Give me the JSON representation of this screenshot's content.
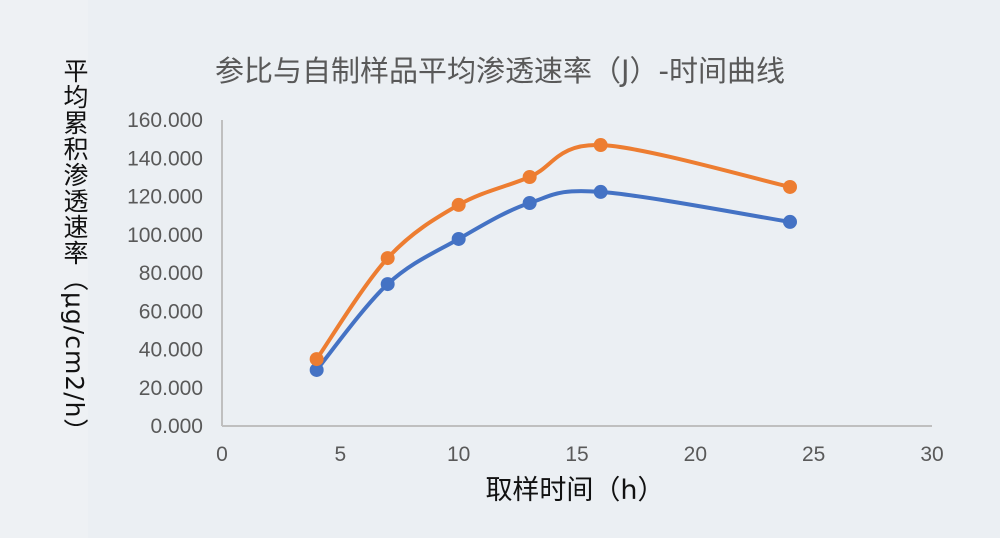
{
  "chart_data": {
    "type": "line",
    "title": "参比与自制样品平均渗透速率（J）-时间曲线",
    "xlabel": "取样时间（h）",
    "ylabel": "平均累积渗透速率（μg/cm2/h）",
    "xlim": [
      0,
      30
    ],
    "ylim": [
      0,
      160
    ],
    "xticks": [
      "0",
      "5",
      "10",
      "15",
      "20",
      "25",
      "30"
    ],
    "yticks": [
      "0.000",
      "20.000",
      "40.000",
      "60.000",
      "80.000",
      "100.000",
      "120.000",
      "140.000",
      "160.000"
    ],
    "grid": false,
    "smooth": true,
    "series": [
      {
        "color": "#4472c4",
        "x": [
          4,
          7,
          10,
          13,
          16,
          24
        ],
        "y": [
          29.3,
          74.2,
          97.8,
          116.6,
          122.4,
          106.7
        ]
      },
      {
        "color": "#ed7d31",
        "x": [
          4,
          7,
          10,
          13,
          16,
          24
        ],
        "y": [
          35.0,
          87.8,
          115.6,
          130.2,
          146.9,
          125.0
        ]
      }
    ]
  }
}
